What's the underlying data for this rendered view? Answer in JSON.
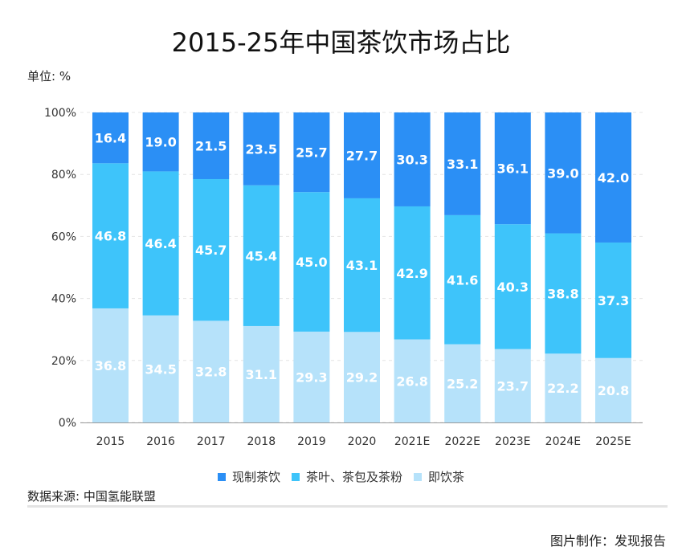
{
  "chart_data": {
    "type": "bar",
    "stacked": true,
    "title": "2015-25年中国茶饮市场占比",
    "unit_label": "单位: %",
    "categories": [
      "2015",
      "2016",
      "2017",
      "2018",
      "2019",
      "2020",
      "2021E",
      "2022E",
      "2023E",
      "2024E",
      "2025E"
    ],
    "series": [
      {
        "name": "即饮茶",
        "color": "#b6e2fa",
        "values": [
          36.8,
          34.5,
          32.8,
          31.1,
          29.3,
          29.2,
          26.8,
          25.2,
          23.7,
          22.2,
          20.8
        ]
      },
      {
        "name": "茶叶、茶包及茶粉",
        "color": "#3ec4fa",
        "values": [
          46.8,
          46.4,
          45.7,
          45.4,
          45.0,
          43.1,
          42.9,
          41.6,
          40.3,
          38.8,
          37.3
        ]
      },
      {
        "name": "现制茶饮",
        "color": "#2b8ff5",
        "values": [
          16.4,
          19.0,
          21.5,
          23.5,
          25.7,
          27.7,
          30.3,
          33.1,
          36.1,
          39.0,
          42.0
        ]
      }
    ],
    "legend_order": [
      2,
      1,
      0
    ],
    "yticks": [
      "0%",
      "20%",
      "40%",
      "60%",
      "80%",
      "100%"
    ],
    "ylim": [
      0,
      100
    ],
    "legend_position": "bottom"
  },
  "source": "数据来源: 中国氢能联盟",
  "credit": "图片制作：发现报告"
}
